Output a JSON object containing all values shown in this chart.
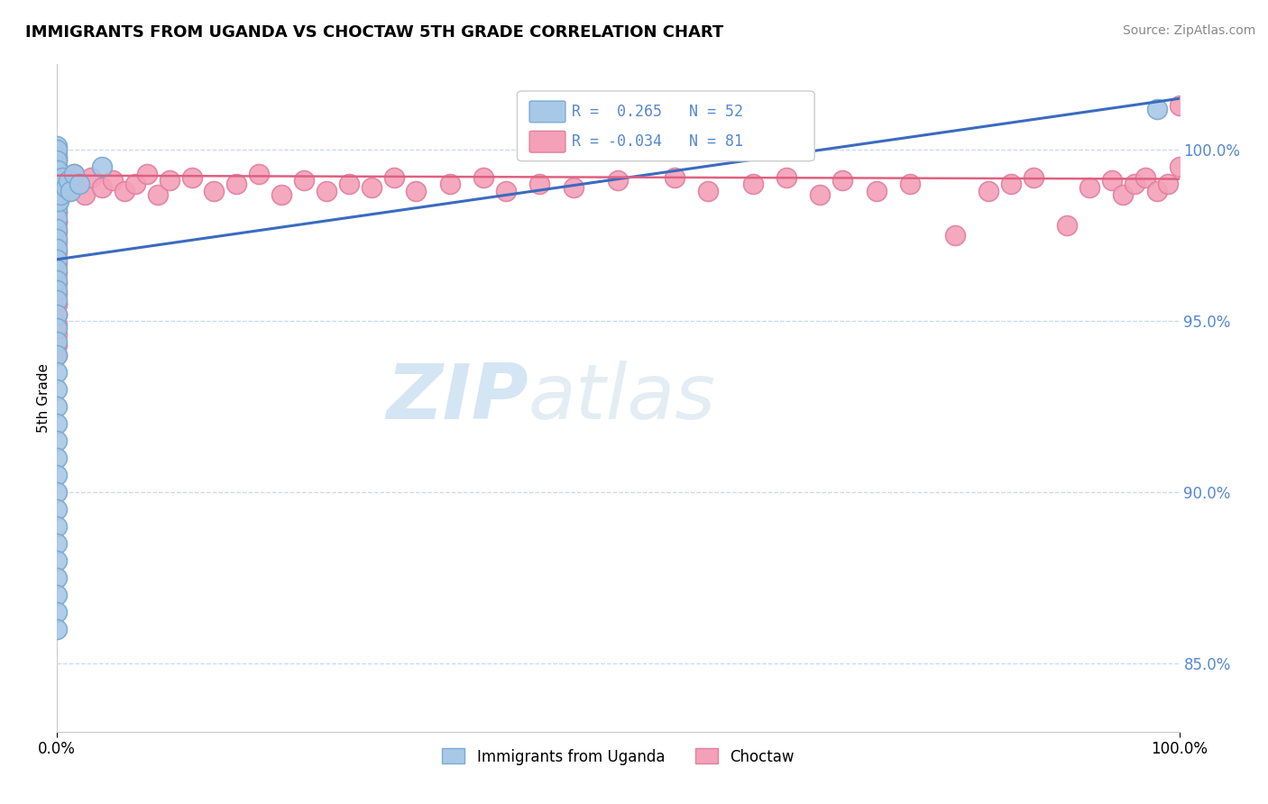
{
  "title": "IMMIGRANTS FROM UGANDA VS CHOCTAW 5TH GRADE CORRELATION CHART",
  "source": "Source: ZipAtlas.com",
  "ylabel": "5th Grade",
  "blue_color": "#a8c8e8",
  "pink_color": "#f4a0b8",
  "blue_line_color": "#3a6bbf",
  "pink_line_color": "#e06080",
  "blue_edge_color": "#7aaad0",
  "pink_edge_color": "#e080a0",
  "legend_blue_r": "R =  0.265",
  "legend_blue_n": "N = 52",
  "legend_pink_r": "R = -0.034",
  "legend_pink_n": "N = 81",
  "xlim": [
    0.0,
    100.0
  ],
  "ylim": [
    83.0,
    102.5
  ],
  "yticks": [
    85.0,
    90.0,
    95.0,
    100.0
  ],
  "ytick_labels": [
    "85.0%",
    "90.0%",
    "95.0%",
    "100.0%"
  ],
  "xticks": [
    0.0,
    100.0
  ],
  "xtick_labels": [
    "0.0%",
    "100.0%"
  ],
  "grid_color": "#c8d8f0",
  "tick_color": "#5588cc",
  "blue_x": [
    0.0,
    0.0,
    0.0,
    0.0,
    0.0,
    0.0,
    0.0,
    0.0,
    0.0,
    0.0,
    0.0,
    0.0,
    0.0,
    0.0,
    0.0,
    0.0,
    0.0,
    0.0,
    0.05,
    0.05,
    0.1,
    0.1,
    0.2,
    0.3,
    0.5,
    0.8,
    1.0,
    1.2,
    1.5,
    2.0,
    0.0,
    0.0,
    0.0,
    0.0,
    0.0,
    0.0,
    0.0,
    0.0,
    0.0,
    0.0,
    0.0,
    0.0,
    0.0,
    0.0,
    0.0,
    0.0,
    0.0,
    0.0,
    0.0,
    0.0,
    4.0,
    98.0
  ],
  "blue_y": [
    100.1,
    99.8,
    99.5,
    99.2,
    98.9,
    98.6,
    98.3,
    98.0,
    97.7,
    97.4,
    97.1,
    96.8,
    96.5,
    96.2,
    95.9,
    95.6,
    100.0,
    99.7,
    99.4,
    99.1,
    98.8,
    98.5,
    99.0,
    98.7,
    99.2,
    98.9,
    99.1,
    98.8,
    99.3,
    99.0,
    95.2,
    94.8,
    94.4,
    94.0,
    93.5,
    93.0,
    92.5,
    92.0,
    91.5,
    91.0,
    90.5,
    90.0,
    89.5,
    89.0,
    88.5,
    88.0,
    87.5,
    87.0,
    86.5,
    86.0,
    99.5,
    101.2
  ],
  "pink_x": [
    0.0,
    0.0,
    0.0,
    0.0,
    0.0,
    0.0,
    0.0,
    0.0,
    0.0,
    0.0,
    0.0,
    0.0,
    0.0,
    0.0,
    0.0,
    0.0,
    0.0,
    0.0,
    0.0,
    0.0,
    0.5,
    1.0,
    1.5,
    2.0,
    2.5,
    3.0,
    4.0,
    5.0,
    6.0,
    7.0,
    8.0,
    9.0,
    10.0,
    12.0,
    14.0,
    16.0,
    18.0,
    20.0,
    22.0,
    24.0,
    26.0,
    28.0,
    30.0,
    32.0,
    35.0,
    38.0,
    40.0,
    43.0,
    46.0,
    50.0,
    55.0,
    58.0,
    62.0,
    65.0,
    68.0,
    70.0,
    73.0,
    76.0,
    80.0,
    83.0,
    85.0,
    87.0,
    90.0,
    92.0,
    94.0,
    95.0,
    96.0,
    97.0,
    98.0,
    99.0,
    100.0,
    0.0,
    0.0,
    0.0,
    0.0,
    0.0,
    0.0,
    0.0,
    0.0,
    0.0,
    100.0
  ],
  "pink_y": [
    100.0,
    99.7,
    99.4,
    99.1,
    98.8,
    98.5,
    98.2,
    97.9,
    97.6,
    97.3,
    97.0,
    96.7,
    96.4,
    96.1,
    95.8,
    95.5,
    99.8,
    99.5,
    99.2,
    98.9,
    99.1,
    98.8,
    99.3,
    99.0,
    98.7,
    99.2,
    98.9,
    99.1,
    98.8,
    99.0,
    99.3,
    98.7,
    99.1,
    99.2,
    98.8,
    99.0,
    99.3,
    98.7,
    99.1,
    98.8,
    99.0,
    98.9,
    99.2,
    98.8,
    99.0,
    99.2,
    98.8,
    99.0,
    98.9,
    99.1,
    99.2,
    98.8,
    99.0,
    99.2,
    98.7,
    99.1,
    98.8,
    99.0,
    97.5,
    98.8,
    99.0,
    99.2,
    97.8,
    98.9,
    99.1,
    98.7,
    99.0,
    99.2,
    98.8,
    99.0,
    101.3,
    95.5,
    95.2,
    94.9,
    94.6,
    94.3,
    94.0,
    98.5,
    98.2,
    97.9,
    99.5
  ]
}
